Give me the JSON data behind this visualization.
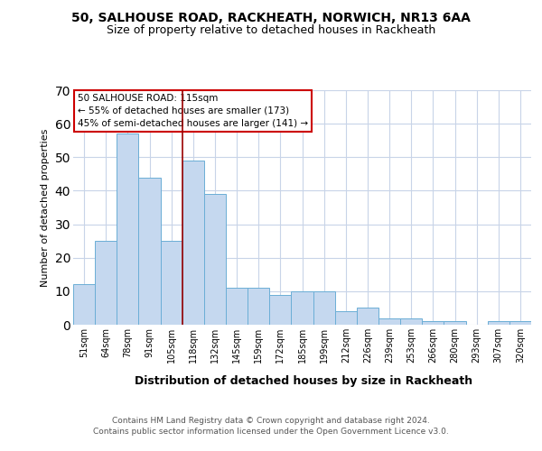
{
  "title1": "50, SALHOUSE ROAD, RACKHEATH, NORWICH, NR13 6AA",
  "title2": "Size of property relative to detached houses in Rackheath",
  "xlabel": "Distribution of detached houses by size in Rackheath",
  "ylabel": "Number of detached properties",
  "categories": [
    "51sqm",
    "64sqm",
    "78sqm",
    "91sqm",
    "105sqm",
    "118sqm",
    "132sqm",
    "145sqm",
    "159sqm",
    "172sqm",
    "185sqm",
    "199sqm",
    "212sqm",
    "226sqm",
    "239sqm",
    "253sqm",
    "266sqm",
    "280sqm",
    "293sqm",
    "307sqm",
    "320sqm"
  ],
  "values": [
    12,
    25,
    57,
    44,
    25,
    49,
    39,
    11,
    11,
    9,
    10,
    10,
    4,
    5,
    2,
    2,
    1,
    1,
    0,
    1,
    1
  ],
  "bar_color": "#c5d8ef",
  "bar_edge_color": "#6baed6",
  "vline_index": 5,
  "vline_color": "#990000",
  "annotation_text": "50 SALHOUSE ROAD: 115sqm\n← 55% of detached houses are smaller (173)\n45% of semi-detached houses are larger (141) →",
  "annotation_box_color": "#ffffff",
  "annotation_box_edge_color": "#cc0000",
  "ylim": [
    0,
    70
  ],
  "yticks": [
    0,
    10,
    20,
    30,
    40,
    50,
    60,
    70
  ],
  "footer": "Contains HM Land Registry data © Crown copyright and database right 2024.\nContains public sector information licensed under the Open Government Licence v3.0.",
  "bg_color": "#ffffff",
  "grid_color": "#c8d4e8",
  "title1_fontsize": 10,
  "title2_fontsize": 9
}
